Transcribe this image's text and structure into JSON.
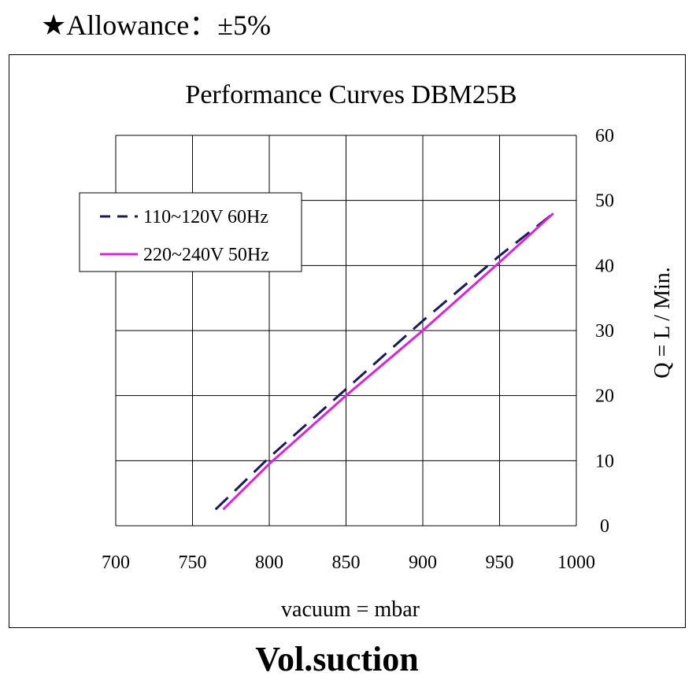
{
  "header": {
    "allowance": "★Allowance：±5%"
  },
  "footer": {
    "caption": "Vol.suction"
  },
  "colors": {
    "series_dashed": "#1a1a5e",
    "series_solid": "#e020e0",
    "grid": "#000000"
  },
  "chart_data": {
    "type": "line",
    "title": "Performance  Curves  DBM25B",
    "xlabel": "vacuum = mbar",
    "ylabel": "Q = L / Min.",
    "xlim": [
      700,
      1000
    ],
    "ylim": [
      0,
      60
    ],
    "xticks": [
      700,
      750,
      800,
      850,
      900,
      950,
      1000
    ],
    "yticks": [
      0,
      10,
      20,
      30,
      40,
      50,
      60
    ],
    "y_axis_side": "right",
    "grid": true,
    "legend_position": "upper-left",
    "series": [
      {
        "name": "110~120V 60Hz",
        "style": "dashed",
        "x": [
          765,
          800,
          850,
          900,
          950,
          985
        ],
        "y": [
          2.5,
          10.5,
          21,
          31.5,
          41.5,
          48
        ]
      },
      {
        "name": "220~240V 50Hz",
        "style": "solid",
        "x": [
          770,
          800,
          850,
          900,
          950,
          985
        ],
        "y": [
          2.5,
          9.5,
          20,
          30,
          40.5,
          48
        ]
      }
    ]
  }
}
